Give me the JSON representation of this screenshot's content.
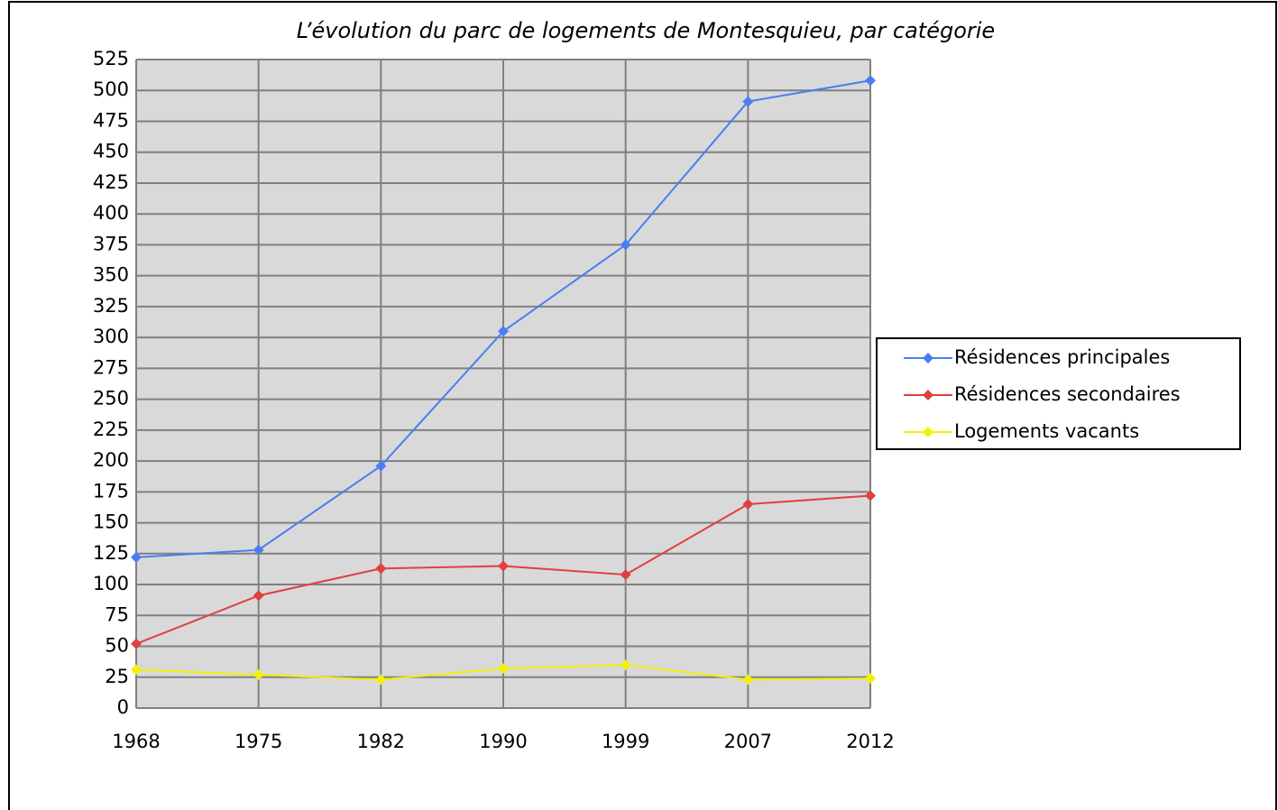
{
  "chart_data": {
    "type": "line",
    "title": "L’évolution du parc de logements de Montesquieu, par catégorie",
    "categories": [
      "1968",
      "1975",
      "1982",
      "1990",
      "1999",
      "2007",
      "2012"
    ],
    "series": [
      {
        "name": "Résidences principales",
        "color": "#4a7ef0",
        "values": [
          122,
          128,
          196,
          305,
          375,
          491,
          508
        ]
      },
      {
        "name": "Résidences secondaires",
        "color": "#e04040",
        "values": [
          52,
          91,
          113,
          115,
          108,
          165,
          172
        ]
      },
      {
        "name": "Logements vacants",
        "color": "#f5f000",
        "values": [
          31,
          27,
          23,
          32,
          35,
          23,
          24
        ]
      }
    ],
    "ylim": [
      0,
      525
    ],
    "yticks": [
      0,
      25,
      50,
      75,
      100,
      125,
      150,
      175,
      200,
      225,
      250,
      275,
      300,
      325,
      350,
      375,
      400,
      425,
      450,
      475,
      500,
      525
    ],
    "grid": true,
    "legend": "right"
  }
}
